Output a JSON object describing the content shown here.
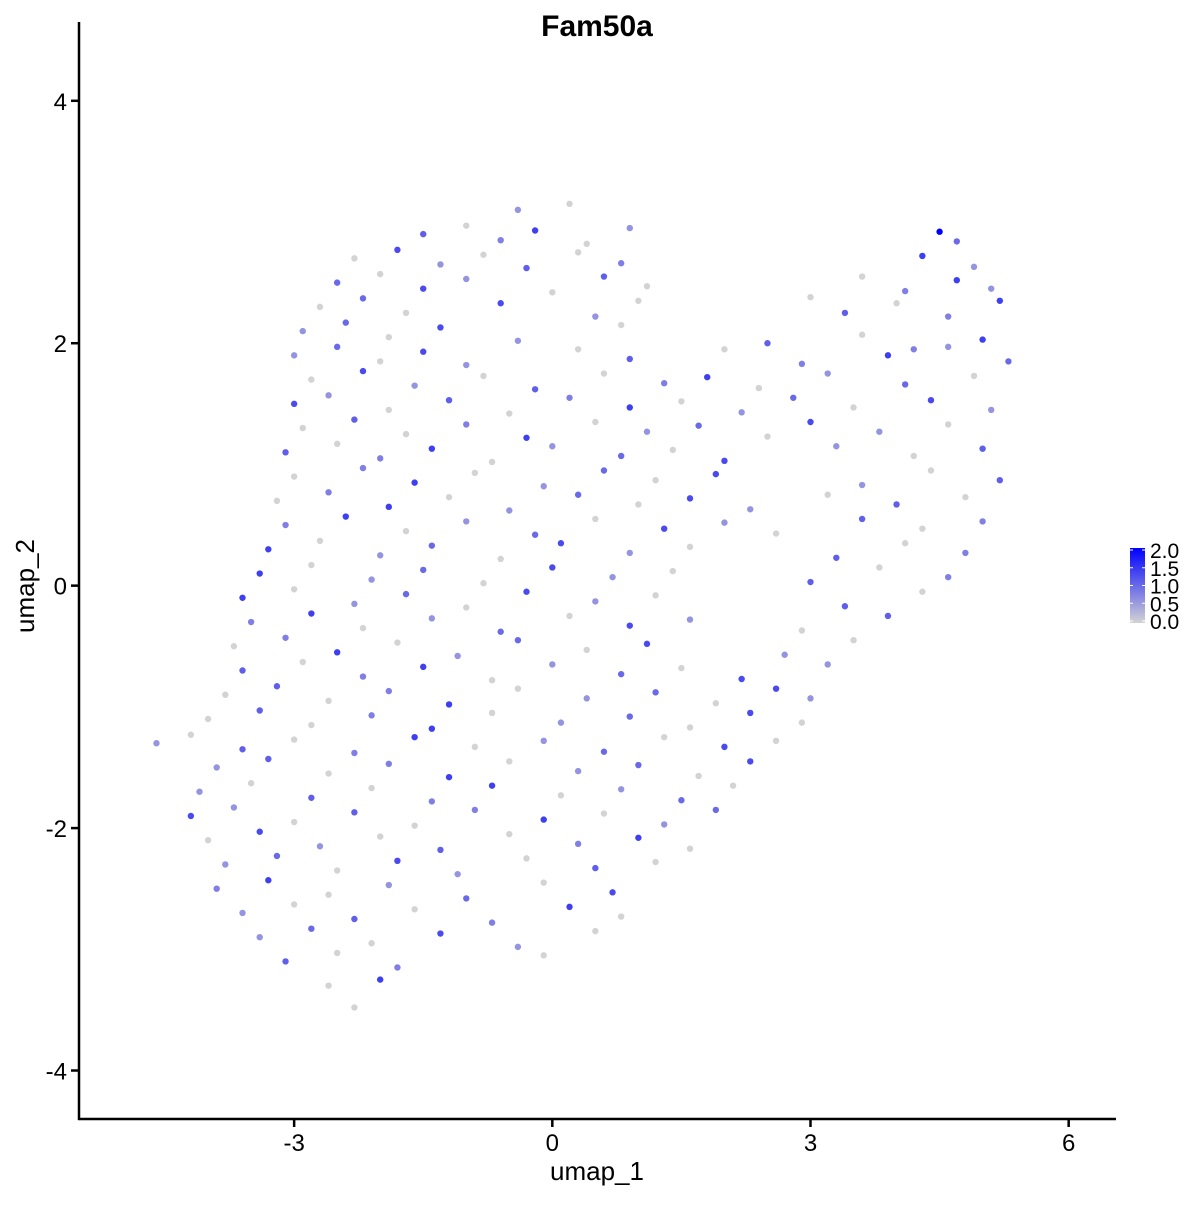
{
  "chart_data": {
    "type": "scatter",
    "title": "Fam50a",
    "xlabel": "umap_1",
    "ylabel": "umap_2",
    "xlim": [
      -5.5,
      6.55
    ],
    "ylim": [
      -4.4,
      4.65
    ],
    "xticks": [
      -3,
      0,
      3,
      6
    ],
    "yticks": [
      -4,
      -2,
      0,
      2,
      4
    ],
    "xtick_labels": [
      "-3",
      "0",
      "3",
      "6"
    ],
    "ytick_labels": [
      "-4",
      "-2",
      "0",
      "2",
      "4"
    ],
    "grid": false,
    "legend": {
      "placement": "right",
      "type": "colorbar",
      "range": [
        0,
        2
      ],
      "labels": [
        "2.0",
        "1.5",
        "1.0",
        "0.5",
        "0.0"
      ],
      "low_color": "#d3d3d3",
      "high_color": "#0000ff"
    },
    "points": [
      [
        -0.4,
        3.1,
        0.6
      ],
      [
        0.2,
        3.15,
        0
      ],
      [
        -1.5,
        2.9,
        1.1
      ],
      [
        -1.0,
        2.97,
        0
      ],
      [
        -0.6,
        2.85,
        0.8
      ],
      [
        -0.2,
        2.93,
        1.4
      ],
      [
        0.4,
        2.82,
        0
      ],
      [
        0.9,
        2.95,
        0.6
      ],
      [
        4.5,
        2.92,
        2.0
      ],
      [
        4.7,
        2.84,
        1.0
      ],
      [
        -2.3,
        2.7,
        0
      ],
      [
        -1.8,
        2.77,
        1.3
      ],
      [
        -1.3,
        2.65,
        0.6
      ],
      [
        -0.8,
        2.73,
        0
      ],
      [
        -0.3,
        2.62,
        1.1
      ],
      [
        0.3,
        2.75,
        0
      ],
      [
        0.8,
        2.66,
        0.8
      ],
      [
        4.3,
        2.72,
        1.4
      ],
      [
        4.9,
        2.63,
        0.6
      ],
      [
        -2.5,
        2.5,
        1.0
      ],
      [
        -2.0,
        2.57,
        0
      ],
      [
        -1.5,
        2.45,
        1.3
      ],
      [
        -1.0,
        2.53,
        0.6
      ],
      [
        0.0,
        2.42,
        0
      ],
      [
        0.6,
        2.55,
        1.1
      ],
      [
        1.1,
        2.47,
        0
      ],
      [
        3.6,
        2.55,
        0
      ],
      [
        4.1,
        2.43,
        0.8
      ],
      [
        4.7,
        2.52,
        1.4
      ],
      [
        5.1,
        2.45,
        0.6
      ],
      [
        -2.7,
        2.3,
        0
      ],
      [
        -2.2,
        2.37,
        1.0
      ],
      [
        -1.7,
        2.25,
        0
      ],
      [
        -0.6,
        2.33,
        1.3
      ],
      [
        0.5,
        2.22,
        0.6
      ],
      [
        1.0,
        2.35,
        0
      ],
      [
        3.0,
        2.38,
        0
      ],
      [
        3.4,
        2.25,
        1.1
      ],
      [
        4.0,
        2.33,
        0
      ],
      [
        4.6,
        2.22,
        0.8
      ],
      [
        5.2,
        2.35,
        1.4
      ],
      [
        -2.9,
        2.1,
        0.6
      ],
      [
        -2.4,
        2.17,
        1.0
      ],
      [
        -1.9,
        2.05,
        0
      ],
      [
        -1.3,
        2.13,
        1.3
      ],
      [
        -0.4,
        2.02,
        0.6
      ],
      [
        0.8,
        2.15,
        0
      ],
      [
        2.5,
        2.0,
        1.1
      ],
      [
        3.6,
        2.07,
        0
      ],
      [
        4.2,
        1.95,
        0.8
      ],
      [
        5.0,
        2.03,
        1.4
      ],
      [
        -3.0,
        1.9,
        0.6
      ],
      [
        -2.5,
        1.97,
        1.0
      ],
      [
        -2.0,
        1.85,
        0
      ],
      [
        -1.5,
        1.93,
        1.3
      ],
      [
        -1.0,
        1.82,
        0.6
      ],
      [
        0.3,
        1.95,
        0
      ],
      [
        0.9,
        1.87,
        1.1
      ],
      [
        2.0,
        1.95,
        0
      ],
      [
        2.9,
        1.83,
        0.8
      ],
      [
        3.9,
        1.9,
        1.4
      ],
      [
        4.6,
        1.97,
        0.6
      ],
      [
        5.3,
        1.85,
        1.0
      ],
      [
        -2.8,
        1.7,
        0
      ],
      [
        -2.2,
        1.77,
        1.3
      ],
      [
        -1.6,
        1.65,
        0.6
      ],
      [
        -0.8,
        1.73,
        0
      ],
      [
        -0.2,
        1.62,
        1.1
      ],
      [
        0.6,
        1.75,
        0
      ],
      [
        1.3,
        1.67,
        0.8
      ],
      [
        1.8,
        1.72,
        1.4
      ],
      [
        2.4,
        1.63,
        0
      ],
      [
        3.2,
        1.75,
        0.6
      ],
      [
        4.1,
        1.66,
        1.0
      ],
      [
        4.9,
        1.73,
        0
      ],
      [
        -3.0,
        1.5,
        1.3
      ],
      [
        -2.6,
        1.57,
        0.6
      ],
      [
        -1.9,
        1.45,
        0
      ],
      [
        -1.2,
        1.53,
        1.1
      ],
      [
        -0.5,
        1.42,
        0
      ],
      [
        0.2,
        1.55,
        0.8
      ],
      [
        0.9,
        1.47,
        1.4
      ],
      [
        1.5,
        1.52,
        0
      ],
      [
        2.2,
        1.43,
        0.6
      ],
      [
        2.8,
        1.55,
        1.0
      ],
      [
        3.5,
        1.47,
        0
      ],
      [
        4.4,
        1.53,
        1.3
      ],
      [
        5.1,
        1.45,
        0.6
      ],
      [
        -2.9,
        1.3,
        0
      ],
      [
        -2.3,
        1.37,
        1.1
      ],
      [
        -1.7,
        1.25,
        0
      ],
      [
        -1.0,
        1.33,
        0.8
      ],
      [
        -0.3,
        1.22,
        1.4
      ],
      [
        0.5,
        1.35,
        0
      ],
      [
        1.1,
        1.27,
        0.6
      ],
      [
        1.7,
        1.32,
        1.0
      ],
      [
        2.5,
        1.23,
        0
      ],
      [
        3.0,
        1.35,
        1.3
      ],
      [
        3.8,
        1.27,
        0.6
      ],
      [
        4.6,
        1.33,
        0
      ],
      [
        -3.1,
        1.1,
        1.1
      ],
      [
        -2.5,
        1.17,
        0
      ],
      [
        -2.0,
        1.05,
        0.8
      ],
      [
        -1.4,
        1.13,
        1.4
      ],
      [
        -0.7,
        1.02,
        0
      ],
      [
        0.0,
        1.15,
        0.6
      ],
      [
        0.8,
        1.07,
        1.0
      ],
      [
        1.4,
        1.12,
        0
      ],
      [
        2.0,
        1.03,
        1.3
      ],
      [
        3.3,
        1.15,
        0.6
      ],
      [
        4.2,
        1.07,
        0
      ],
      [
        5.0,
        1.13,
        1.1
      ],
      [
        -3.0,
        0.9,
        0
      ],
      [
        -2.2,
        0.97,
        0.8
      ],
      [
        -1.6,
        0.85,
        1.4
      ],
      [
        -0.9,
        0.93,
        0
      ],
      [
        -0.1,
        0.82,
        0.6
      ],
      [
        0.6,
        0.95,
        1.0
      ],
      [
        1.2,
        0.87,
        0
      ],
      [
        1.9,
        0.92,
        1.3
      ],
      [
        3.6,
        0.83,
        0.6
      ],
      [
        4.4,
        0.95,
        0
      ],
      [
        5.2,
        0.87,
        1.1
      ],
      [
        -3.2,
        0.7,
        0
      ],
      [
        -2.6,
        0.77,
        0.8
      ],
      [
        -1.9,
        0.65,
        1.4
      ],
      [
        -1.2,
        0.73,
        0
      ],
      [
        -0.5,
        0.62,
        0.6
      ],
      [
        0.3,
        0.75,
        1.0
      ],
      [
        1.0,
        0.67,
        0
      ],
      [
        1.6,
        0.72,
        1.3
      ],
      [
        2.3,
        0.63,
        0.6
      ],
      [
        3.2,
        0.75,
        0
      ],
      [
        4.0,
        0.67,
        1.1
      ],
      [
        4.8,
        0.73,
        0
      ],
      [
        -3.1,
        0.5,
        0.8
      ],
      [
        -2.4,
        0.57,
        1.4
      ],
      [
        -1.7,
        0.45,
        0
      ],
      [
        -1.0,
        0.53,
        0.6
      ],
      [
        -0.2,
        0.42,
        1.0
      ],
      [
        0.5,
        0.55,
        0
      ],
      [
        1.3,
        0.47,
        1.3
      ],
      [
        2.0,
        0.52,
        0.6
      ],
      [
        2.6,
        0.43,
        0
      ],
      [
        3.6,
        0.55,
        1.1
      ],
      [
        4.3,
        0.47,
        0
      ],
      [
        5.0,
        0.53,
        0.8
      ],
      [
        -3.3,
        0.3,
        1.4
      ],
      [
        -2.7,
        0.37,
        0
      ],
      [
        -2.0,
        0.25,
        0.6
      ],
      [
        -1.4,
        0.33,
        1.0
      ],
      [
        -0.6,
        0.22,
        0
      ],
      [
        0.1,
        0.35,
        1.3
      ],
      [
        0.9,
        0.27,
        0.6
      ],
      [
        1.6,
        0.32,
        0
      ],
      [
        3.3,
        0.23,
        1.1
      ],
      [
        4.1,
        0.35,
        0
      ],
      [
        4.8,
        0.27,
        0.8
      ],
      [
        -3.4,
        0.1,
        1.4
      ],
      [
        -2.8,
        0.17,
        0
      ],
      [
        -2.1,
        0.05,
        0.6
      ],
      [
        -1.5,
        0.13,
        1.0
      ],
      [
        -0.8,
        0.02,
        0
      ],
      [
        0.0,
        0.15,
        1.3
      ],
      [
        0.7,
        0.07,
        0.6
      ],
      [
        1.4,
        0.12,
        0
      ],
      [
        3.0,
        0.03,
        1.1
      ],
      [
        3.8,
        0.15,
        0
      ],
      [
        4.6,
        0.07,
        0.8
      ],
      [
        -3.6,
        -0.1,
        1.4
      ],
      [
        -3.0,
        -0.03,
        0
      ],
      [
        -2.3,
        -0.15,
        0.6
      ],
      [
        -1.7,
        -0.07,
        1.0
      ],
      [
        -1.0,
        -0.18,
        0
      ],
      [
        -0.3,
        -0.05,
        1.3
      ],
      [
        0.5,
        -0.13,
        0.6
      ],
      [
        1.2,
        -0.08,
        0
      ],
      [
        3.4,
        -0.17,
        1.1
      ],
      [
        4.3,
        -0.05,
        0
      ],
      [
        -3.5,
        -0.3,
        0.8
      ],
      [
        -2.8,
        -0.23,
        1.4
      ],
      [
        -2.2,
        -0.35,
        0
      ],
      [
        -1.4,
        -0.27,
        0.6
      ],
      [
        -0.6,
        -0.38,
        1.0
      ],
      [
        0.2,
        -0.25,
        0
      ],
      [
        0.9,
        -0.33,
        1.3
      ],
      [
        1.6,
        -0.28,
        0.6
      ],
      [
        2.9,
        -0.37,
        0
      ],
      [
        3.9,
        -0.25,
        1.1
      ],
      [
        -3.7,
        -0.5,
        0
      ],
      [
        -3.1,
        -0.43,
        0.8
      ],
      [
        -2.5,
        -0.55,
        1.4
      ],
      [
        -1.8,
        -0.47,
        0
      ],
      [
        -1.1,
        -0.58,
        0.6
      ],
      [
        -0.4,
        -0.45,
        1.0
      ],
      [
        0.4,
        -0.53,
        0
      ],
      [
        1.1,
        -0.48,
        1.3
      ],
      [
        2.7,
        -0.57,
        0.6
      ],
      [
        3.5,
        -0.45,
        0
      ],
      [
        -3.6,
        -0.7,
        1.1
      ],
      [
        -2.9,
        -0.63,
        0
      ],
      [
        -2.2,
        -0.75,
        0.8
      ],
      [
        -1.5,
        -0.67,
        1.4
      ],
      [
        -0.7,
        -0.78,
        0
      ],
      [
        0.0,
        -0.65,
        0.6
      ],
      [
        0.8,
        -0.73,
        1.0
      ],
      [
        1.5,
        -0.68,
        0
      ],
      [
        2.2,
        -0.77,
        1.3
      ],
      [
        3.2,
        -0.65,
        0.6
      ],
      [
        -3.8,
        -0.9,
        0
      ],
      [
        -3.2,
        -0.83,
        1.1
      ],
      [
        -2.6,
        -0.95,
        0
      ],
      [
        -1.9,
        -0.87,
        0.8
      ],
      [
        -1.2,
        -0.98,
        1.4
      ],
      [
        -0.4,
        -0.85,
        0
      ],
      [
        0.4,
        -0.93,
        0.6
      ],
      [
        1.2,
        -0.88,
        1.0
      ],
      [
        1.9,
        -0.97,
        0
      ],
      [
        2.6,
        -0.85,
        1.3
      ],
      [
        3.0,
        -0.93,
        0.6
      ],
      [
        -4.0,
        -1.1,
        0
      ],
      [
        -3.4,
        -1.03,
        1.1
      ],
      [
        -2.8,
        -1.15,
        0
      ],
      [
        -2.1,
        -1.07,
        0.8
      ],
      [
        -1.4,
        -1.18,
        1.4
      ],
      [
        -0.7,
        -1.05,
        0
      ],
      [
        0.1,
        -1.13,
        0.6
      ],
      [
        0.9,
        -1.08,
        1.0
      ],
      [
        1.6,
        -1.17,
        0
      ],
      [
        2.3,
        -1.05,
        1.3
      ],
      [
        2.9,
        -1.13,
        0
      ],
      [
        -4.6,
        -1.3,
        0.6
      ],
      [
        -4.2,
        -1.23,
        0
      ],
      [
        -3.6,
        -1.35,
        1.1
      ],
      [
        -3.0,
        -1.27,
        0
      ],
      [
        -2.3,
        -1.38,
        0.8
      ],
      [
        -1.6,
        -1.25,
        1.4
      ],
      [
        -0.9,
        -1.33,
        0
      ],
      [
        -0.1,
        -1.28,
        0.6
      ],
      [
        0.6,
        -1.37,
        1.0
      ],
      [
        1.3,
        -1.25,
        0
      ],
      [
        2.0,
        -1.33,
        1.3
      ],
      [
        2.6,
        -1.28,
        0
      ],
      [
        -3.9,
        -1.5,
        0.6
      ],
      [
        -3.3,
        -1.43,
        1.1
      ],
      [
        -2.6,
        -1.55,
        0
      ],
      [
        -1.9,
        -1.47,
        0.8
      ],
      [
        -1.2,
        -1.58,
        1.4
      ],
      [
        -0.5,
        -1.45,
        0
      ],
      [
        0.3,
        -1.53,
        0.6
      ],
      [
        1.0,
        -1.48,
        1.0
      ],
      [
        1.7,
        -1.57,
        0
      ],
      [
        2.3,
        -1.45,
        1.3
      ],
      [
        -4.1,
        -1.7,
        0.6
      ],
      [
        -3.5,
        -1.63,
        0
      ],
      [
        -2.8,
        -1.75,
        1.1
      ],
      [
        -2.1,
        -1.67,
        0
      ],
      [
        -1.4,
        -1.78,
        0.8
      ],
      [
        -0.7,
        -1.65,
        1.4
      ],
      [
        0.1,
        -1.73,
        0
      ],
      [
        0.8,
        -1.68,
        0.6
      ],
      [
        1.5,
        -1.77,
        1.0
      ],
      [
        2.1,
        -1.65,
        0
      ],
      [
        -4.2,
        -1.9,
        1.3
      ],
      [
        -3.7,
        -1.83,
        0.6
      ],
      [
        -3.0,
        -1.95,
        0
      ],
      [
        -2.3,
        -1.87,
        1.1
      ],
      [
        -1.6,
        -1.98,
        0
      ],
      [
        -0.9,
        -1.85,
        0.8
      ],
      [
        -0.1,
        -1.93,
        1.4
      ],
      [
        0.6,
        -1.88,
        0
      ],
      [
        1.3,
        -1.97,
        0.6
      ],
      [
        1.9,
        -1.85,
        1.0
      ],
      [
        -4.0,
        -2.1,
        0
      ],
      [
        -3.4,
        -2.03,
        1.3
      ],
      [
        -2.7,
        -2.15,
        0.6
      ],
      [
        -2.0,
        -2.07,
        0
      ],
      [
        -1.3,
        -2.18,
        1.1
      ],
      [
        -0.5,
        -2.05,
        0
      ],
      [
        0.3,
        -2.13,
        0.8
      ],
      [
        1.0,
        -2.08,
        1.4
      ],
      [
        1.6,
        -2.17,
        0
      ],
      [
        -3.8,
        -2.3,
        0.6
      ],
      [
        -3.2,
        -2.23,
        1.0
      ],
      [
        -2.5,
        -2.35,
        0
      ],
      [
        -1.8,
        -2.27,
        1.3
      ],
      [
        -1.1,
        -2.38,
        0.6
      ],
      [
        -0.3,
        -2.25,
        0
      ],
      [
        0.5,
        -2.33,
        1.1
      ],
      [
        1.2,
        -2.28,
        0
      ],
      [
        -3.9,
        -2.5,
        0.8
      ],
      [
        -3.3,
        -2.43,
        1.4
      ],
      [
        -2.6,
        -2.55,
        0
      ],
      [
        -1.9,
        -2.47,
        0.6
      ],
      [
        -1.0,
        -2.58,
        1.0
      ],
      [
        -0.1,
        -2.45,
        0
      ],
      [
        0.7,
        -2.53,
        1.3
      ],
      [
        -3.6,
        -2.7,
        0.6
      ],
      [
        -3.0,
        -2.63,
        0
      ],
      [
        -2.3,
        -2.75,
        1.1
      ],
      [
        -1.6,
        -2.67,
        0
      ],
      [
        -0.7,
        -2.78,
        0.8
      ],
      [
        0.2,
        -2.65,
        1.4
      ],
      [
        0.8,
        -2.73,
        0
      ],
      [
        -3.4,
        -2.9,
        0.6
      ],
      [
        -2.8,
        -2.83,
        1.0
      ],
      [
        -2.1,
        -2.95,
        0
      ],
      [
        -1.3,
        -2.87,
        1.3
      ],
      [
        -0.4,
        -2.98,
        0.6
      ],
      [
        0.5,
        -2.85,
        0
      ],
      [
        -3.1,
        -3.1,
        1.1
      ],
      [
        -2.5,
        -3.03,
        0
      ],
      [
        -1.8,
        -3.15,
        0.8
      ],
      [
        -0.1,
        -3.05,
        0
      ],
      [
        -2.6,
        -3.3,
        0
      ],
      [
        -2.0,
        -3.25,
        1.4
      ],
      [
        -2.3,
        -3.48,
        0
      ]
    ]
  }
}
